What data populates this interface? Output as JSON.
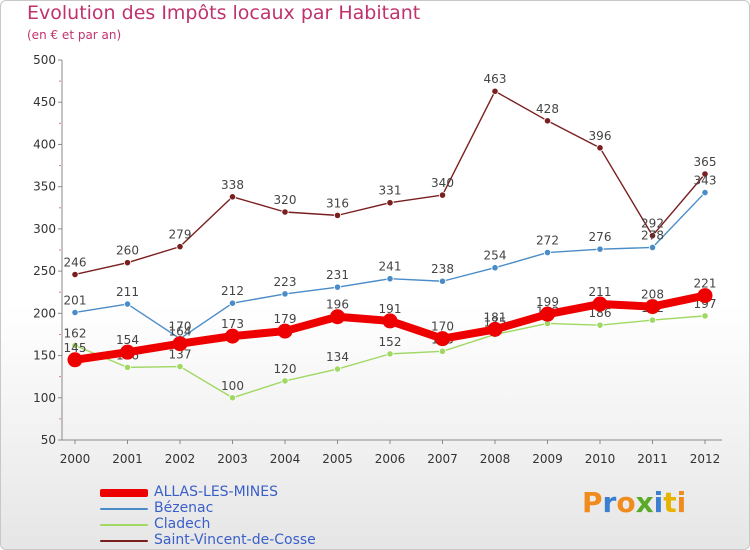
{
  "header": {
    "title": "Evolution des Impôts locaux par Habitant",
    "subtitle": "(en € et par an)"
  },
  "logo": {
    "letters": [
      "P",
      "r",
      "o",
      "x",
      "i",
      "t",
      "i"
    ],
    "colors": [
      "#f08c1e",
      "#3a7fd0",
      "#f08c1e",
      "#5aaa2a",
      "#3a7fd0",
      "#e6b400",
      "#f08c1e"
    ]
  },
  "chart_data": {
    "type": "line",
    "title": "Evolution des Impôts locaux par Habitant",
    "subtitle": "(en € et par an)",
    "xlabel": "",
    "ylabel": "",
    "x": [
      "2000",
      "2001",
      "2002",
      "2003",
      "2004",
      "2005",
      "2006",
      "2007",
      "2008",
      "2009",
      "2010",
      "2011",
      "2012"
    ],
    "yticks": [
      "50",
      "100",
      "150",
      "200",
      "250",
      "300",
      "350",
      "400",
      "450",
      "500"
    ],
    "ylim": [
      50,
      500
    ],
    "grid": false,
    "legend_position": "bottom-left",
    "series": [
      {
        "name": "Saint-Vincent-de-Cosse",
        "color": "#7a1f1f",
        "values": [
          246,
          260,
          279,
          338,
          320,
          316,
          331,
          340,
          463,
          428,
          396,
          292,
          365
        ],
        "labels": [
          "246",
          "260",
          "279",
          "338",
          "320",
          "316",
          "331",
          "340",
          "463",
          "428",
          "396",
          "292",
          "365"
        ]
      },
      {
        "name": "Bézenac",
        "color": "#4a8cc8",
        "values": [
          201,
          211,
          170,
          212,
          223,
          231,
          241,
          238,
          254,
          272,
          276,
          278,
          343
        ],
        "labels": [
          "201",
          "211",
          "170",
          "212",
          "223",
          "231",
          "241",
          "238",
          "254",
          "272",
          "276",
          "278",
          "343"
        ]
      },
      {
        "name": "Cladech",
        "color": "#a0d864",
        "values": [
          162,
          136,
          137,
          100,
          120,
          134,
          152,
          155,
          175,
          188,
          186,
          192,
          197
        ],
        "labels": [
          "162",
          "136",
          "137",
          "100",
          "120",
          "134",
          "152",
          "155",
          "175",
          "188",
          "186",
          "192",
          "197"
        ]
      },
      {
        "name": "ALLAS-LES-MINES",
        "color": "#ee0000",
        "values": [
          145,
          154,
          164,
          173,
          179,
          196,
          191,
          170,
          181,
          199,
          211,
          208,
          221
        ],
        "labels": [
          "145",
          "154",
          "164",
          "173",
          "179",
          "196",
          "191",
          "170",
          "181",
          "199",
          "211",
          "208",
          "221"
        ]
      }
    ],
    "legend": [
      "ALLAS-LES-MINES",
      "Bézenac",
      "Cladech",
      "Saint-Vincent-de-Cosse"
    ]
  }
}
